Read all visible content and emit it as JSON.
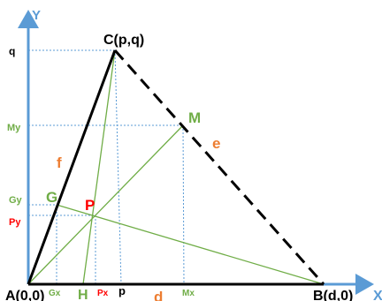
{
  "axes": {
    "x_label": "X",
    "y_label": "Y",
    "color": "#5b9bd5"
  },
  "points": {
    "A": "A(0,0)",
    "B": "B(d,0)",
    "C": "C(p,q)",
    "G": "G",
    "P": "P",
    "M": "M",
    "H": "H"
  },
  "sides": {
    "f": "f",
    "e": "e",
    "d": "d"
  },
  "ticks": {
    "q": "q",
    "My": "My",
    "Gy": "Gy",
    "Py": "Py",
    "Gx": "Gx",
    "Px": "Px",
    "p": "p",
    "Mx": "Mx"
  },
  "colors": {
    "black": "#000000",
    "green": "#70ad47",
    "orange": "#ed7d31",
    "red": "#ff0000",
    "guide": "#5b9bd5"
  }
}
